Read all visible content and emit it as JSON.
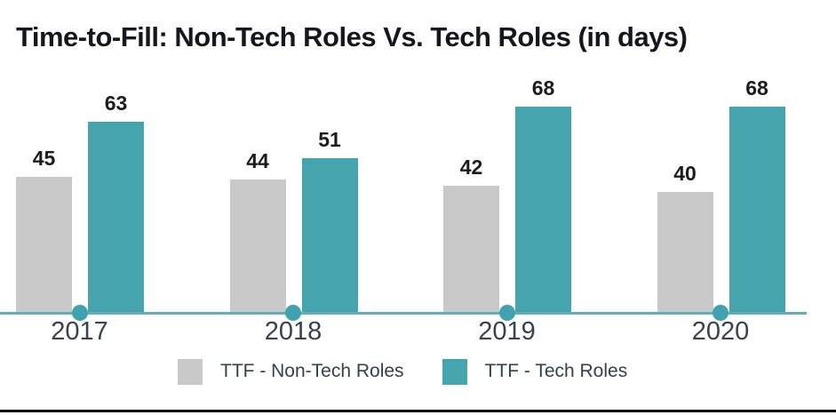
{
  "chart_data": {
    "type": "bar",
    "title": "Time-to-Fill: Non-Tech Roles Vs. Tech Roles (in days)",
    "categories": [
      "2017",
      "2018",
      "2019",
      "2020"
    ],
    "series": [
      {
        "name": "TTF - Non-Tech Roles",
        "values": [
          45,
          44,
          42,
          40
        ],
        "color": "#c9c9c9"
      },
      {
        "name": "TTF - Tech Roles",
        "values": [
          63,
          51,
          68,
          68
        ],
        "color": "#45a4ae"
      }
    ],
    "xlabel": "",
    "ylabel": "",
    "ylim": [
      0,
      75
    ],
    "grid": false,
    "data_labels": true,
    "legend_position": "bottom",
    "axis_line_color": "#5fafb8",
    "marker_color": "#3fa2ae"
  },
  "colors": {
    "teal": "#45a4ae",
    "gray": "#c9c9c9",
    "axis_line": "#5fafb8",
    "title_text": "#16161e",
    "value_text": "#1c1c1c",
    "year_text": "#3a424e",
    "legend_text": "#33414c",
    "bottom_rule": "#000000"
  }
}
